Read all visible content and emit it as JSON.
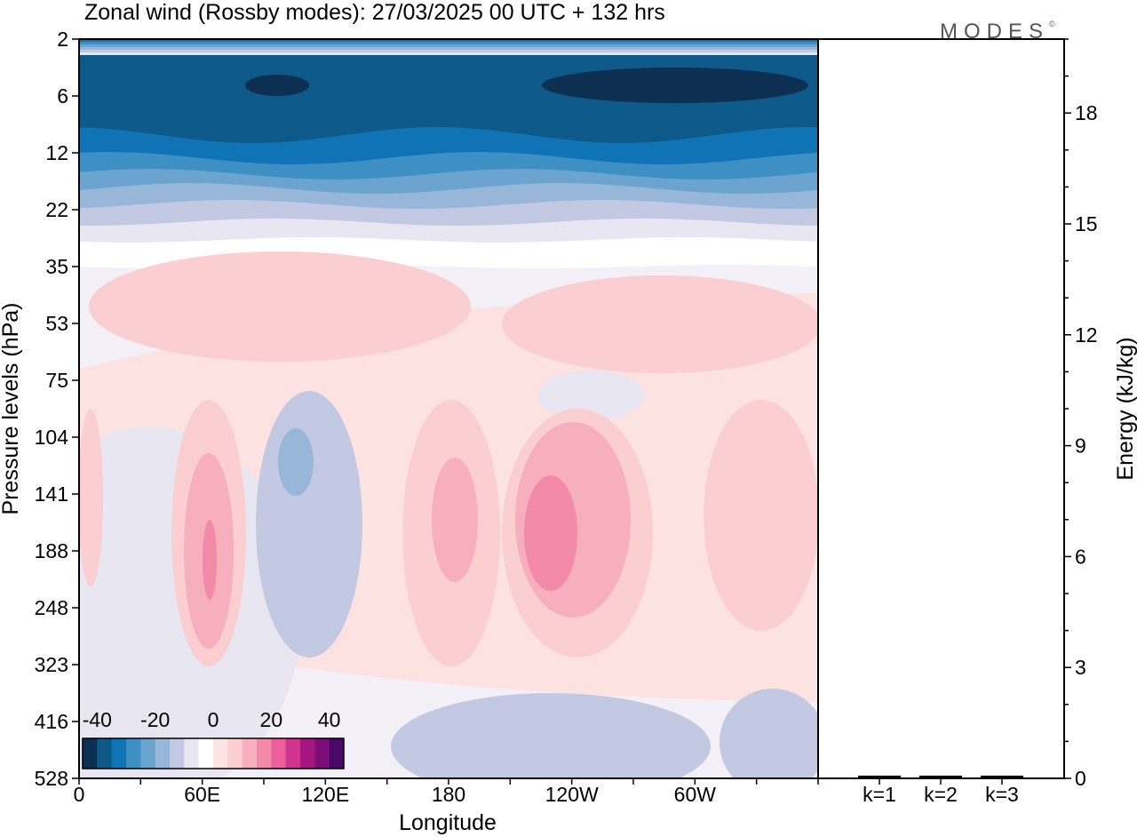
{
  "chart_data": [
    {
      "type": "heatmap",
      "title": "Zonal wind (Rossby modes):  27/03/2025  00 UTC  + 132 hrs",
      "xlabel": "Longitude",
      "ylabel": "Pressure levels (hPa)",
      "x_ticks": [
        "0",
        "60E",
        "120E",
        "180",
        "120W",
        "60W"
      ],
      "y_ticks": [
        "2",
        "6",
        "12",
        "22",
        "35",
        "53",
        "75",
        "104",
        "141",
        "188",
        "248",
        "323",
        "416",
        "528"
      ],
      "colorbar": {
        "ticks": [
          "-40",
          "-20",
          "0",
          "20",
          "40"
        ],
        "range": [
          -45,
          45
        ],
        "colors": [
          "#0c2f52",
          "#0d5a8a",
          "#1073b5",
          "#3e90c4",
          "#6ba4cf",
          "#98b6d8",
          "#c3c9e2",
          "#e8e6f1",
          "#ffffff",
          "#fde2e2",
          "#fbcfd2",
          "#f7afbd",
          "#f48aaa",
          "#ec5f9b",
          "#d0348d",
          "#a5177e",
          "#7b0e77",
          "#4a0869"
        ]
      },
      "grid": false
    },
    {
      "type": "bar",
      "categories": [
        "k=1",
        "k=2",
        "k=3"
      ],
      "values": [
        0.05,
        0.05,
        0.05
      ],
      "ylabel": "Energy (kJ/kg)",
      "y_ticks": [
        "0",
        "3",
        "6",
        "9",
        "12",
        "15",
        "18"
      ],
      "ylim": [
        0,
        20
      ]
    }
  ],
  "logo": {
    "text": "MODES",
    "mark": "©"
  }
}
